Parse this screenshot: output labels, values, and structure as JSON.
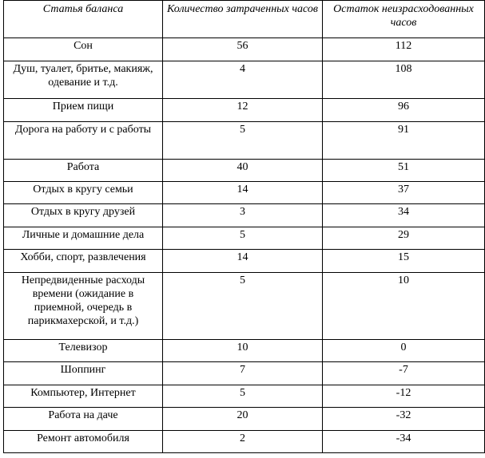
{
  "table": {
    "headers": [
      "Статья баланса",
      "Количество затраченных часов",
      "Остаток неизрасходованных часов"
    ],
    "rows": [
      {
        "item": "Сон",
        "spent": "56",
        "remaining": "112"
      },
      {
        "item": "Душ, туалет, бритье, макияж, одевание и т.д.",
        "spent": "4",
        "remaining": "108"
      },
      {
        "item": "Прием пищи",
        "spent": "12",
        "remaining": "96"
      },
      {
        "item": "Дорога на работу и с работы",
        "spent": "5",
        "remaining": "91"
      },
      {
        "item": "Работа",
        "spent": "40",
        "remaining": "51"
      },
      {
        "item": "Отдых в кругу семьи",
        "spent": "14",
        "remaining": "37"
      },
      {
        "item": "Отдых в кругу друзей",
        "spent": "3",
        "remaining": "34"
      },
      {
        "item": "Личные и домашние дела",
        "spent": "5",
        "remaining": "29"
      },
      {
        "item": "Хобби, спорт, развлечения",
        "spent": "14",
        "remaining": "15"
      },
      {
        "item": "Непредвиденные расходы времени (ожидание в приемной, очередь в парикмахерской, и т.д.)",
        "spent": "5",
        "remaining": "10"
      },
      {
        "item": "Телевизор",
        "spent": "10",
        "remaining": "0"
      },
      {
        "item": "Шоппинг",
        "spent": "7",
        "remaining": "-7"
      },
      {
        "item": "Компьютер, Интернет",
        "spent": "5",
        "remaining": "-12"
      },
      {
        "item": "Работа на даче",
        "spent": "20",
        "remaining": "-32"
      },
      {
        "item": "Ремонт автомобиля",
        "spent": "2",
        "remaining": "-34"
      }
    ]
  }
}
